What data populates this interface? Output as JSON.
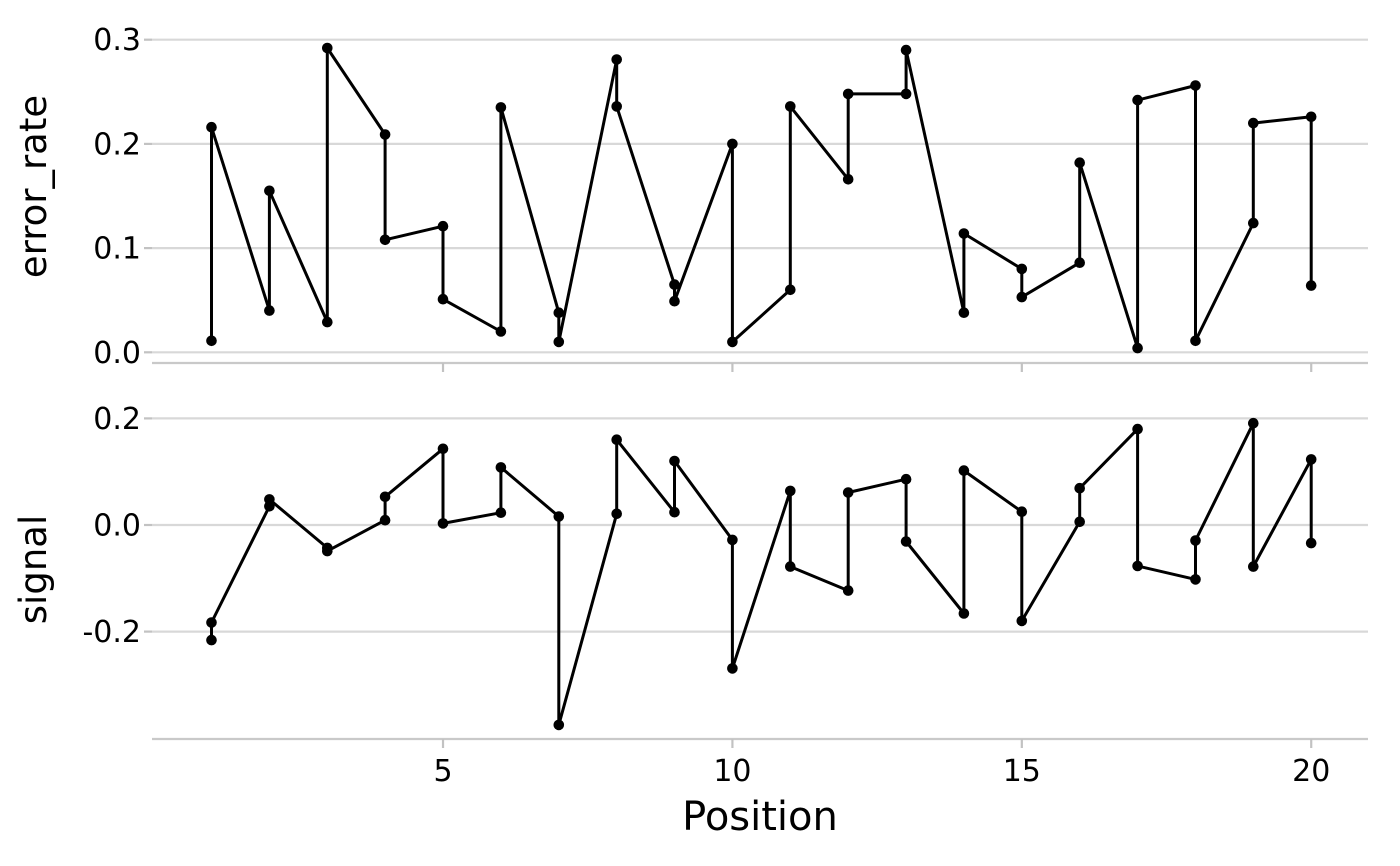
{
  "figure": {
    "kind": "faceted-line-chart",
    "background": "#ffffff"
  },
  "colors": {
    "series": "#000000",
    "grid": "#d8d8d8",
    "axis_line": "#c9c9c9",
    "tick_mark": "#c2c2c2",
    "text": "#000000",
    "background": "#ffffff"
  },
  "chart_data": {
    "type": "line",
    "title": "",
    "xlabel": "Position",
    "legend": false,
    "grid": true,
    "marker": "circle",
    "points_per_position": 2,
    "positions": [
      1,
      2,
      3,
      4,
      5,
      6,
      7,
      8,
      9,
      10,
      11,
      12,
      13,
      14,
      15,
      16,
      17,
      18,
      19,
      20
    ],
    "x_ticks": [
      5,
      10,
      15,
      20
    ],
    "xtick_labels": [
      "5",
      "10",
      "15",
      "20"
    ],
    "xlim": [
      0,
      21
    ],
    "facets": [
      {
        "ylabel": "error_rate",
        "ylim": [
          -0.011,
          0.329
        ],
        "yticks": [
          0.3,
          0.2,
          0.1,
          0.0
        ],
        "ytick_labels": [
          "0.3",
          "0.2",
          "0.1",
          "0.0"
        ],
        "pairs": [
          [
            0.011,
            0.216
          ],
          [
            0.04,
            0.155
          ],
          [
            0.029,
            0.292
          ],
          [
            0.209,
            0.108
          ],
          [
            0.121,
            0.051
          ],
          [
            0.02,
            0.235
          ],
          [
            0.038,
            0.01
          ],
          [
            0.281,
            0.236
          ],
          [
            0.065,
            0.049
          ],
          [
            0.2,
            0.01
          ],
          [
            0.06,
            0.236
          ],
          [
            0.166,
            0.248
          ],
          [
            0.248,
            0.29
          ],
          [
            0.038,
            0.114
          ],
          [
            0.08,
            0.053
          ],
          [
            0.086,
            0.182
          ],
          [
            0.004,
            0.242
          ],
          [
            0.256,
            0.011
          ],
          [
            0.124,
            0.22
          ],
          [
            0.226,
            0.064
          ]
        ]
      },
      {
        "ylabel": "signal",
        "ylim": [
          -0.402,
          0.234
        ],
        "yticks": [
          0.2,
          0.0,
          -0.2
        ],
        "ytick_labels": [
          "0.2",
          "0.0",
          "-0.2"
        ],
        "pairs": [
          [
            -0.216,
            -0.183
          ],
          [
            0.035,
            0.048
          ],
          [
            -0.043,
            -0.049
          ],
          [
            0.009,
            0.053
          ],
          [
            0.143,
            0.003
          ],
          [
            0.023,
            0.108
          ],
          [
            0.016,
            -0.375
          ],
          [
            0.021,
            0.16
          ],
          [
            0.024,
            0.12
          ],
          [
            -0.028,
            -0.269
          ],
          [
            0.064,
            -0.078
          ],
          [
            -0.123,
            0.061
          ],
          [
            0.086,
            -0.031
          ],
          [
            -0.166,
            0.102
          ],
          [
            0.025,
            -0.18
          ],
          [
            0.006,
            0.069
          ],
          [
            0.18,
            -0.077
          ],
          [
            -0.102,
            -0.029
          ],
          [
            0.191,
            -0.078
          ],
          [
            0.123,
            -0.034
          ]
        ]
      }
    ]
  }
}
